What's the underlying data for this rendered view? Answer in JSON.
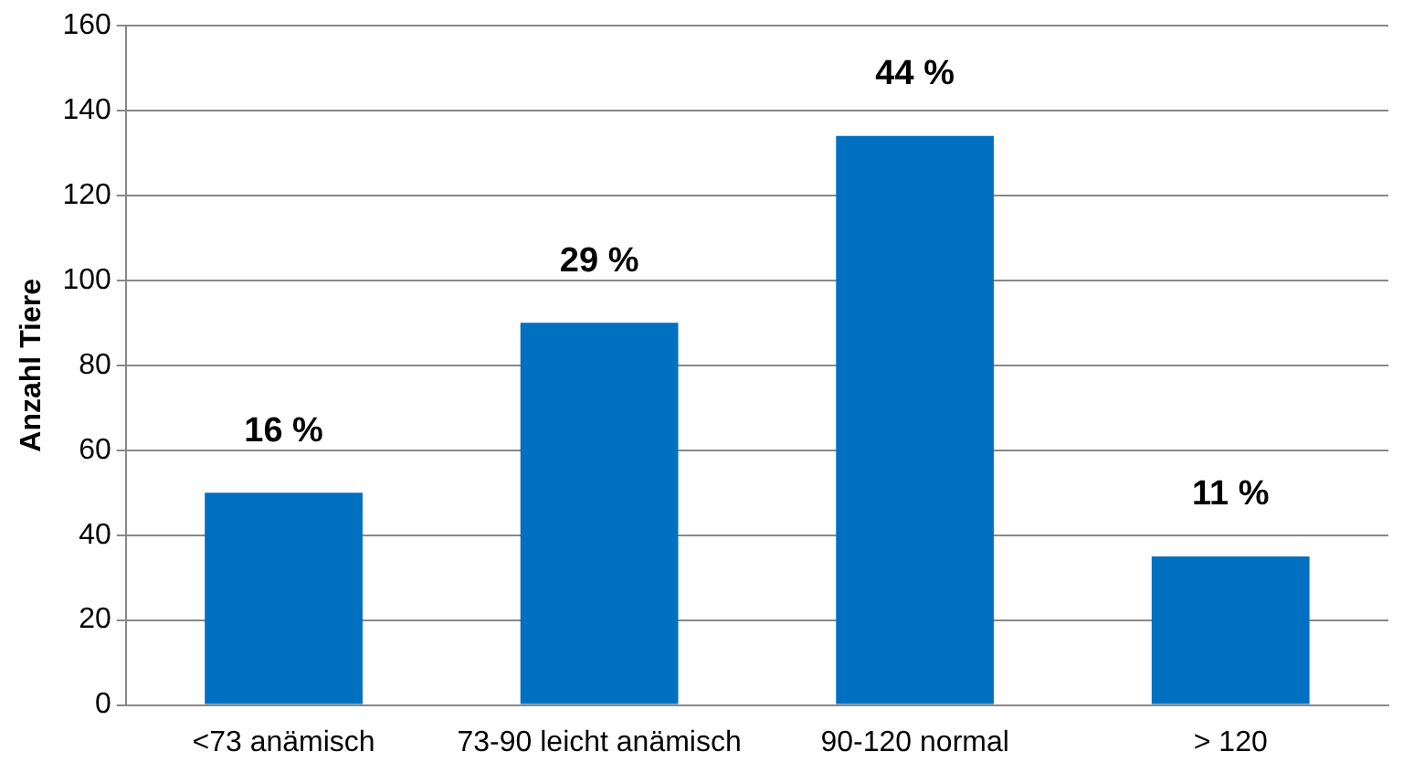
{
  "chart_data": {
    "type": "bar",
    "ylabel": "Anzahl Tiere",
    "categories": [
      "<73 anämisch",
      "73-90 leicht anämisch",
      "90-120 normal",
      "> 120"
    ],
    "values": [
      50,
      90,
      134,
      35
    ],
    "annotations": [
      {
        "text": "16 %",
        "x": "<73 anämisch",
        "y": 50
      },
      {
        "text": "29 %",
        "x": "73-90 leicht anämisch",
        "y": 90
      },
      {
        "text": "44 %",
        "x": "90-120 normal",
        "y": 134
      },
      {
        "text": "11 %",
        "x": "> 120",
        "y": 35
      }
    ],
    "color": "#0070c0",
    "ylim": [
      0,
      160
    ],
    "yticks": [
      0,
      20,
      40,
      60,
      80,
      100,
      120,
      140,
      160
    ],
    "grid": "y"
  }
}
